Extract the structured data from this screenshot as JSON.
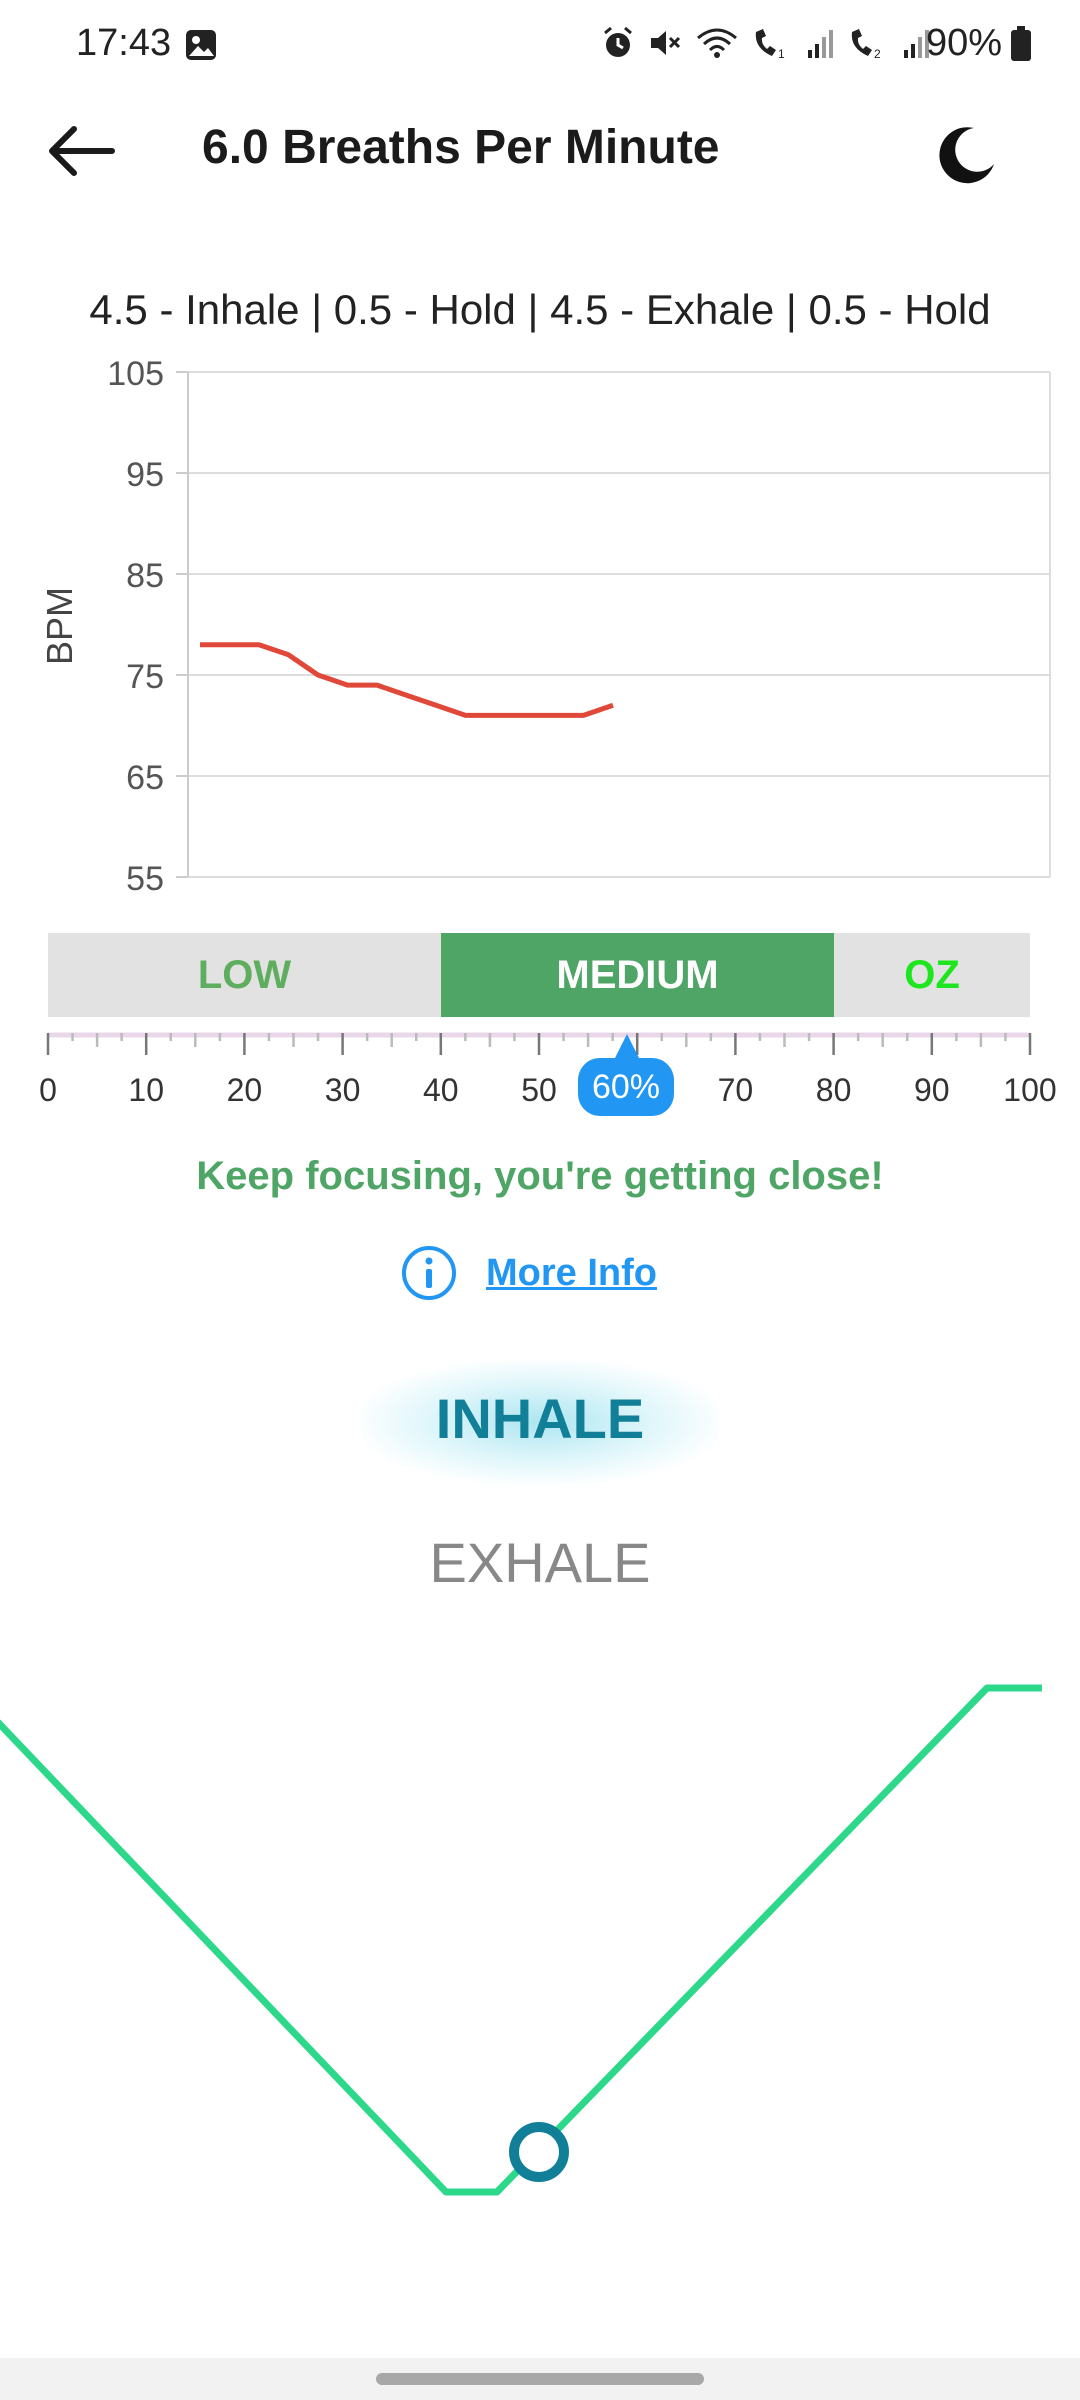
{
  "status_bar": {
    "time": "17:43",
    "battery_percent": "90%",
    "icons": [
      "gallery-icon",
      "alarm-icon",
      "mute-icon",
      "wifi-icon",
      "wifi-call-1-icon",
      "signal-1-icon",
      "wifi-call-2-icon",
      "signal-2-icon",
      "battery-icon"
    ]
  },
  "header": {
    "title": "6.0 Breaths Per Minute",
    "back_icon": "arrow-left-icon",
    "theme_icon": "moon-icon"
  },
  "pattern": "4.5 - Inhale | 0.5 - Hold | 4.5 - Exhale | 0.5 - Hold",
  "chart_data": {
    "type": "line",
    "title": "",
    "xlabel": "",
    "ylabel": "BPM",
    "ylim": [
      55,
      105
    ],
    "yticks": [
      "55",
      "65",
      "75",
      "85",
      "95",
      "105"
    ],
    "grid": true,
    "series": [
      {
        "color": "#e0483a",
        "values": [
          78,
          78,
          78,
          77,
          75,
          74,
          74,
          73,
          72,
          71,
          71,
          71,
          71,
          71,
          72
        ]
      }
    ]
  },
  "zones": {
    "low": "LOW",
    "medium": "MEDIUM",
    "oz": "OZ",
    "active": "medium",
    "colors": {
      "low": "#5fad5f",
      "medium": "#4ea565",
      "oz": "#1ee61e"
    }
  },
  "scale": {
    "labels": [
      "0",
      "10",
      "20",
      "30",
      "40",
      "50",
      "60",
      "70",
      "80",
      "90",
      "100"
    ],
    "progress_value": 60,
    "progress_label": "60%"
  },
  "message": "Keep focusing, you're getting close!",
  "more_info": {
    "label": "More Info",
    "icon": "info-icon"
  },
  "breath": {
    "inhale": "INHALE",
    "exhale": "EXHALE",
    "wave_color": "#2ed88a",
    "marker_color": "#117f97"
  }
}
